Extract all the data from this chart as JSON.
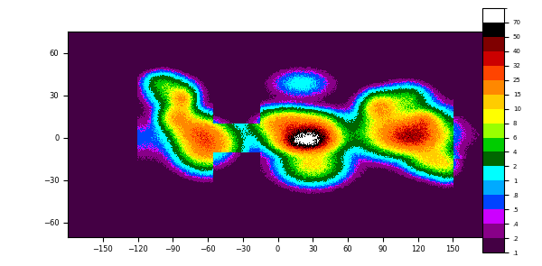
{
  "title": "",
  "colorbar_labels": [
    "70",
    "50",
    "40",
    "32",
    "25",
    "15",
    "10",
    "8",
    "6",
    "4",
    "2",
    "1",
    ".8",
    ".5",
    ".4",
    ".2",
    ".1"
  ],
  "colorbar_colors": [
    "#ffffff",
    "#000000",
    "#7f0000",
    "#cc0000",
    "#ff4400",
    "#ff8800",
    "#ffcc00",
    "#ffff00",
    "#99ff00",
    "#00cc00",
    "#006600",
    "#00ffff",
    "#00aaff",
    "#0044ff",
    "#cc00ff",
    "#880088",
    "#440044"
  ],
  "colorbar_bounds": [
    0.1,
    0.2,
    0.4,
    0.5,
    0.8,
    1.0,
    2.0,
    4.0,
    6.0,
    8.0,
    10.0,
    15.0,
    25.0,
    32.0,
    40.0,
    50.0,
    70.0,
    100.0
  ],
  "ocean_color": "#aaaaaa",
  "land_bg_color": "#aaaaaa",
  "background_color": "#ffffff",
  "lon_ticks": [
    -150,
    -120,
    -90,
    -60,
    -30,
    0,
    30,
    60,
    90,
    120,
    150
  ],
  "lat_ticks": [
    60,
    30,
    0,
    -30,
    -60
  ],
  "figsize": [
    6.0,
    2.95
  ],
  "dpi": 100
}
